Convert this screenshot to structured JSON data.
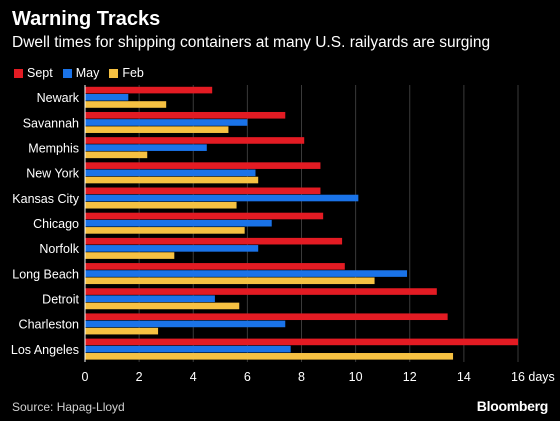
{
  "title": "Warning Tracks",
  "subtitle": "Dwell times for shipping containers at many U.S. railyards are surging",
  "source": "Source: Hapag-Lloyd",
  "brand": "Bloomberg",
  "legend": [
    {
      "name": "Sept",
      "color": "#e31b23"
    },
    {
      "name": "May",
      "color": "#1a73e8"
    },
    {
      "name": "Feb",
      "color": "#f6c142"
    }
  ],
  "chart_data": {
    "type": "bar",
    "orientation": "horizontal",
    "title": "Warning Tracks",
    "subtitle": "Dwell times for shipping containers at many U.S. railyards are surging",
    "categories": [
      "Newark",
      "Savannah",
      "Memphis",
      "New York",
      "Kansas City",
      "Chicago",
      "Norfolk",
      "Long Beach",
      "Detroit",
      "Charleston",
      "Los Angeles"
    ],
    "series": [
      {
        "name": "Sept",
        "color": "#e31b23",
        "values": [
          4.7,
          7.4,
          8.1,
          8.7,
          8.7,
          8.8,
          9.5,
          9.6,
          13.0,
          13.4,
          16.0
        ]
      },
      {
        "name": "May",
        "color": "#1a73e8",
        "values": [
          1.6,
          6.0,
          4.5,
          6.3,
          10.1,
          6.9,
          6.4,
          11.9,
          4.8,
          7.4,
          7.6
        ]
      },
      {
        "name": "Feb",
        "color": "#f6c142",
        "values": [
          3.0,
          5.3,
          2.3,
          6.4,
          5.6,
          5.9,
          3.3,
          10.7,
          5.7,
          2.7,
          13.6
        ]
      }
    ],
    "xlim": [
      0,
      16
    ],
    "xticks": [
      "0",
      "2",
      "4",
      "6",
      "8",
      "10",
      "12",
      "14",
      "16 days"
    ],
    "grid": true,
    "legend_position": "top-left"
  }
}
